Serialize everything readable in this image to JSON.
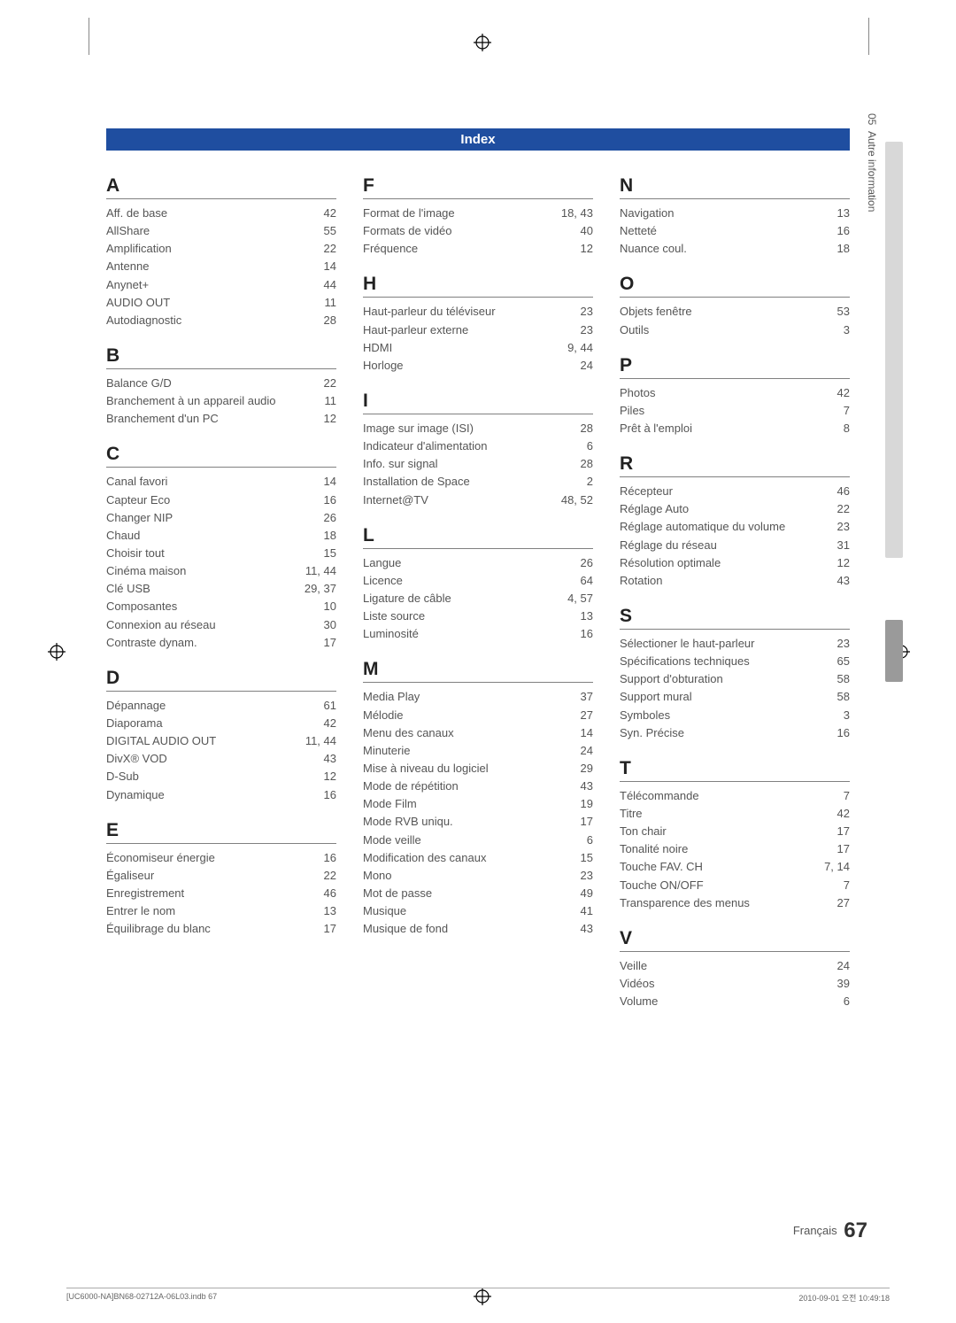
{
  "page": {
    "header_title": "Index",
    "side_chapter_num": "05",
    "side_chapter_label": "Autre information",
    "footer_lang": "Français",
    "footer_page_number": "67",
    "footer_left": "[UC6000-NA]BN68-02712A-06L03.indb   67",
    "footer_right": "2010-09-01   오전 10:49:18",
    "colors": {
      "header_bg": "#1f4ea0",
      "header_fg": "#ffffff",
      "text": "#555555",
      "letter": "#222222",
      "rule": "#808080",
      "side_tab": "#d8d8d8",
      "side_tab_dark": "#9a9a9a"
    }
  },
  "index": {
    "A": [
      {
        "term": "Aff. de base",
        "page": "42"
      },
      {
        "term": "AllShare",
        "page": "55"
      },
      {
        "term": "Amplification",
        "page": "22"
      },
      {
        "term": "Antenne",
        "page": "14"
      },
      {
        "term": "Anynet+",
        "page": "44"
      },
      {
        "term": "AUDIO OUT",
        "page": "11"
      },
      {
        "term": "Autodiagnostic",
        "page": "28"
      }
    ],
    "B": [
      {
        "term": "Balance G/D",
        "page": "22"
      },
      {
        "term": "Branchement à un appareil audio",
        "page": "11"
      },
      {
        "term": "Branchement d'un PC",
        "page": "12"
      }
    ],
    "C": [
      {
        "term": "Canal favori",
        "page": "14"
      },
      {
        "term": "Capteur Eco",
        "page": "16"
      },
      {
        "term": "Changer NIP",
        "page": "26"
      },
      {
        "term": "Chaud",
        "page": "18"
      },
      {
        "term": "Choisir tout",
        "page": "15"
      },
      {
        "term": "Cinéma maison",
        "page": "11, 44"
      },
      {
        "term": "Clé USB",
        "page": "29, 37"
      },
      {
        "term": "Composantes",
        "page": "10"
      },
      {
        "term": "Connexion au réseau",
        "page": "30"
      },
      {
        "term": "Contraste dynam.",
        "page": "17"
      }
    ],
    "D": [
      {
        "term": "Dépannage",
        "page": "61"
      },
      {
        "term": "Diaporama",
        "page": "42"
      },
      {
        "term": "DIGITAL AUDIO OUT",
        "page": "11, 44"
      },
      {
        "term": "DivX® VOD",
        "page": "43"
      },
      {
        "term": "D-Sub",
        "page": "12"
      },
      {
        "term": "Dynamique",
        "page": "16"
      }
    ],
    "E": [
      {
        "term": "Économiseur énergie",
        "page": "16"
      },
      {
        "term": "Égaliseur",
        "page": "22"
      },
      {
        "term": "Enregistrement",
        "page": "46"
      },
      {
        "term": "Entrer le nom",
        "page": "13"
      },
      {
        "term": "Équilibrage du blanc",
        "page": "17"
      }
    ],
    "F": [
      {
        "term": "Format de l'image",
        "page": "18, 43"
      },
      {
        "term": "Formats de vidéo",
        "page": "40"
      },
      {
        "term": "Fréquence",
        "page": "12"
      }
    ],
    "H": [
      {
        "term": "Haut-parleur du téléviseur",
        "page": "23"
      },
      {
        "term": "Haut-parleur externe",
        "page": "23"
      },
      {
        "term": "HDMI",
        "page": "9, 44"
      },
      {
        "term": "Horloge",
        "page": "24"
      }
    ],
    "I": [
      {
        "term": "Image sur image (ISI)",
        "page": "28"
      },
      {
        "term": "Indicateur d'alimentation",
        "page": "6"
      },
      {
        "term": "Info. sur signal",
        "page": "28"
      },
      {
        "term": "Installation de Space",
        "page": "2"
      },
      {
        "term": "Internet@TV",
        "page": "48, 52"
      }
    ],
    "L": [
      {
        "term": "Langue",
        "page": "26"
      },
      {
        "term": "Licence",
        "page": "64"
      },
      {
        "term": "Ligature de câble",
        "page": "4, 57"
      },
      {
        "term": "Liste source",
        "page": "13"
      },
      {
        "term": "Luminosité",
        "page": "16"
      }
    ],
    "M": [
      {
        "term": "Media Play",
        "page": "37"
      },
      {
        "term": "Mélodie",
        "page": "27"
      },
      {
        "term": "Menu des canaux",
        "page": "14"
      },
      {
        "term": "Minuterie",
        "page": "24"
      },
      {
        "term": "Mise à niveau du logiciel",
        "page": "29"
      },
      {
        "term": "Mode de répétition",
        "page": "43"
      },
      {
        "term": "Mode Film",
        "page": "19"
      },
      {
        "term": "Mode RVB uniqu.",
        "page": "17"
      },
      {
        "term": "Mode veille",
        "page": "6"
      },
      {
        "term": "Modification des canaux",
        "page": "15"
      },
      {
        "term": "Mono",
        "page": "23"
      },
      {
        "term": "Mot de passe",
        "page": "49"
      },
      {
        "term": "Musique",
        "page": "41"
      },
      {
        "term": "Musique de fond",
        "page": "43"
      }
    ],
    "N": [
      {
        "term": "Navigation",
        "page": "13"
      },
      {
        "term": "Netteté",
        "page": "16"
      },
      {
        "term": "Nuance coul.",
        "page": "18"
      }
    ],
    "O": [
      {
        "term": "Objets fenêtre",
        "page": "53"
      },
      {
        "term": "Outils",
        "page": "3"
      }
    ],
    "P": [
      {
        "term": "Photos",
        "page": "42"
      },
      {
        "term": "Piles",
        "page": "7"
      },
      {
        "term": "Prêt à l'emploi",
        "page": "8"
      }
    ],
    "R": [
      {
        "term": "Récepteur",
        "page": "46"
      },
      {
        "term": "Réglage Auto",
        "page": "22"
      },
      {
        "term": "Réglage automatique du volume",
        "page": "23"
      },
      {
        "term": "Réglage du réseau",
        "page": "31"
      },
      {
        "term": "Résolution optimale",
        "page": "12"
      },
      {
        "term": "Rotation",
        "page": "43"
      }
    ],
    "S": [
      {
        "term": "Sélectioner le haut-parleur",
        "page": "23"
      },
      {
        "term": "Spécifications techniques",
        "page": "65"
      },
      {
        "term": "Support d'obturation",
        "page": "58"
      },
      {
        "term": "Support mural",
        "page": "58"
      },
      {
        "term": "Symboles",
        "page": "3"
      },
      {
        "term": "Syn. Précise",
        "page": "16"
      }
    ],
    "T": [
      {
        "term": "Télécommande",
        "page": "7"
      },
      {
        "term": "Titre",
        "page": "42"
      },
      {
        "term": "Ton chair",
        "page": "17"
      },
      {
        "term": "Tonalité noire",
        "page": "17"
      },
      {
        "term": "Touche FAV. CH",
        "page": "7, 14"
      },
      {
        "term": "Touche ON/OFF",
        "page": "7"
      },
      {
        "term": "Transparence des menus",
        "page": "27"
      }
    ],
    "V": [
      {
        "term": "Veille",
        "page": "24"
      },
      {
        "term": "Vidéos",
        "page": "39"
      },
      {
        "term": "Volume",
        "page": "6"
      }
    ]
  },
  "layout": {
    "columns": [
      [
        "A",
        "B",
        "C",
        "D",
        "E"
      ],
      [
        "F",
        "H",
        "I",
        "L",
        "M"
      ],
      [
        "N",
        "O",
        "P",
        "R",
        "S",
        "T",
        "V"
      ]
    ]
  }
}
